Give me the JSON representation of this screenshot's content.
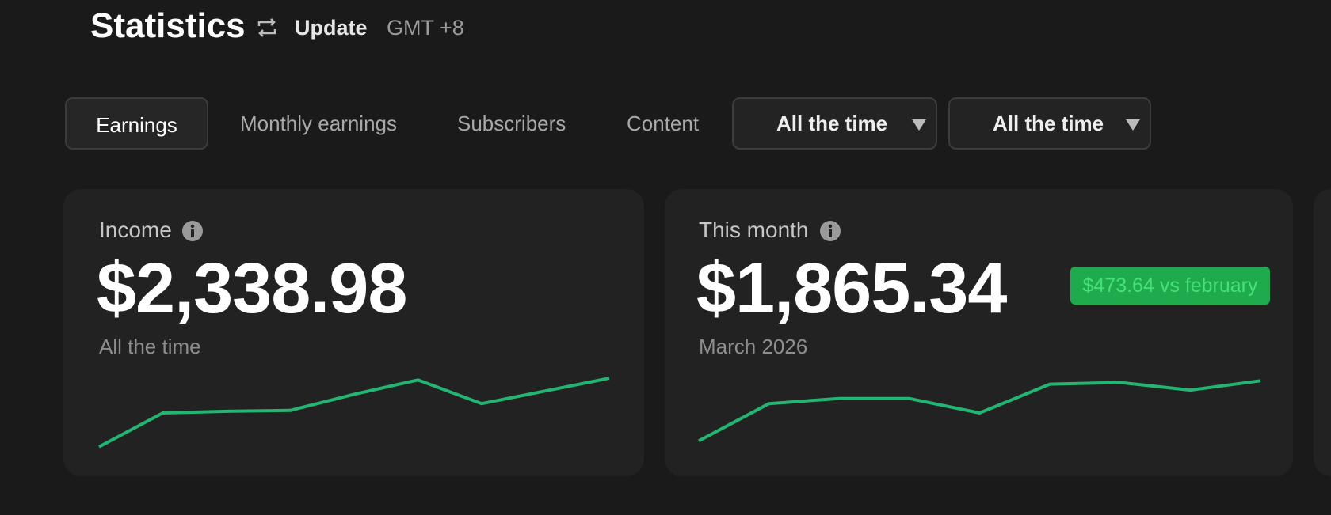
{
  "header": {
    "title": "Statistics",
    "update": "Update",
    "timezone": "GMT +8"
  },
  "tabs": [
    "Earnings",
    "Monthly earnings",
    "Subscribers",
    "Content"
  ],
  "filters": [
    "All the time",
    "All the time"
  ],
  "cards": [
    {
      "label": "Income",
      "value": "$2,338.98",
      "period": "All the time",
      "sparkline": {
        "type": "line",
        "color": "#22b573",
        "values": [
          3,
          43,
          45,
          46,
          65,
          82,
          54,
          69,
          84
        ]
      }
    },
    {
      "label": "This month",
      "value": "$1,865.34",
      "period": "March 2026",
      "badge": "$473.64 vs february",
      "sparkline": {
        "type": "line",
        "color": "#22b573",
        "values": [
          10,
          54,
          60,
          60,
          43,
          77,
          79,
          70,
          81
        ]
      }
    }
  ]
}
